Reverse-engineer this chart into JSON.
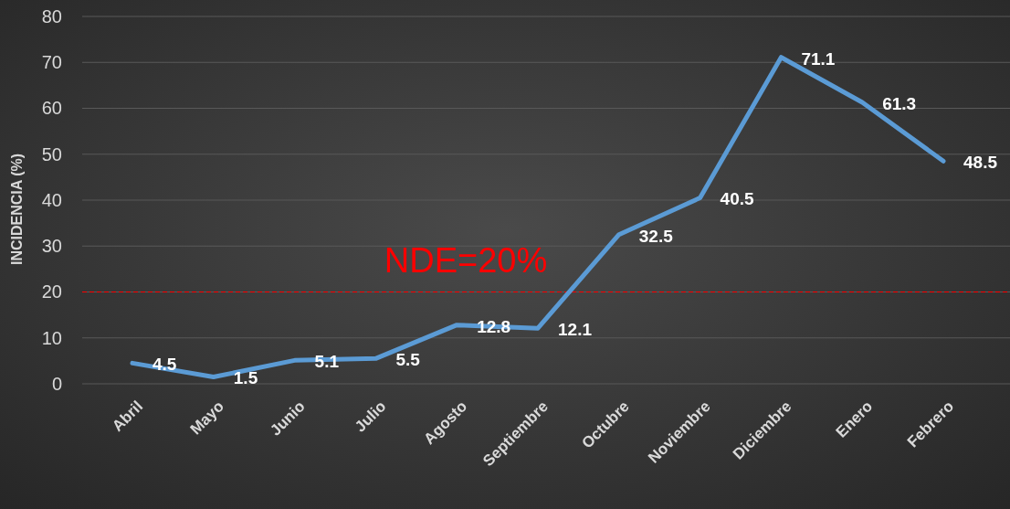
{
  "chart_data": {
    "type": "line",
    "ylabel": "INCIDENCIA (%)",
    "categories": [
      "Abril",
      "Mayo",
      "Junio",
      "Julio",
      "Agosto",
      "Septiembre",
      "Octubre",
      "Noviembre",
      "Diciembre",
      "Enero",
      "Febrero"
    ],
    "series": [
      {
        "color": "#5b9bd5",
        "values": [
          4.5,
          1.5,
          5.1,
          5.5,
          12.8,
          12.1,
          32.5,
          40.5,
          71.1,
          61.3,
          48.5
        ]
      }
    ],
    "ylim": [
      0,
      80
    ],
    "yticks": [
      0,
      10,
      20,
      30,
      40,
      50,
      60,
      70,
      80
    ],
    "grid": "y",
    "data_labels": true,
    "ref_lines": [
      {
        "axis": "y",
        "value": 20,
        "label": "NDE=20%",
        "color": "#ff0000",
        "line_style": "dashed"
      }
    ]
  }
}
